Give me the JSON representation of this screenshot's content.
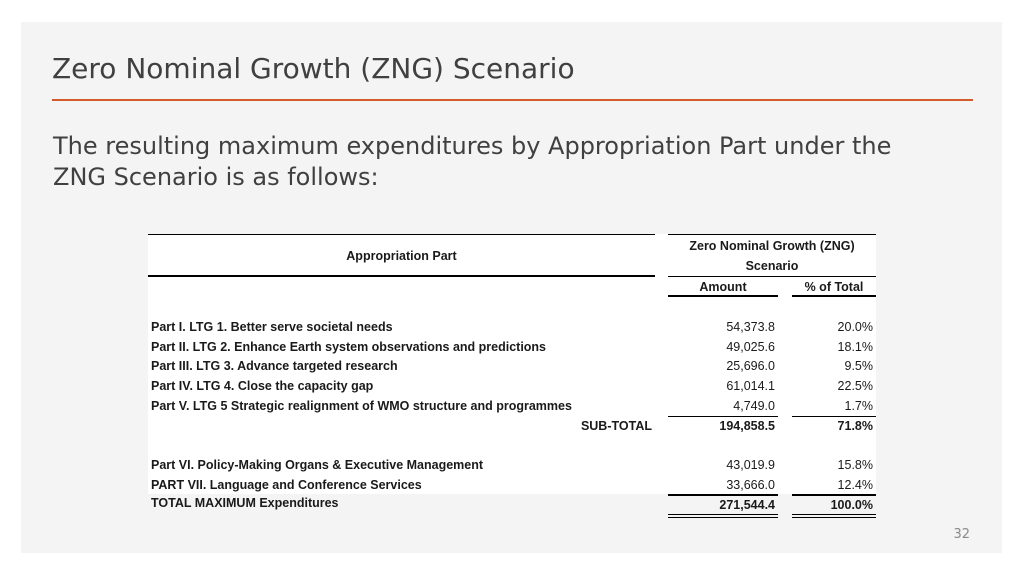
{
  "title": "Zero Nominal Growth (ZNG) Scenario",
  "subtitle": "The resulting maximum expenditures by Appropriation Part under the ZNG Scenario is as follows:",
  "page_number": "32",
  "table": {
    "header_part": "Appropriation Part",
    "header_group_line1": "Zero Nominal Growth (ZNG)",
    "header_group_line2": "Scenario",
    "header_amount": "Amount",
    "header_pct": "% of Total",
    "rows": [
      {
        "label": "Part I. LTG 1. Better serve societal needs",
        "amount": "54,373.8",
        "pct": "20.0%"
      },
      {
        "label": "Part II. LTG 2. Enhance Earth system observations and predictions",
        "amount": "49,025.6",
        "pct": "18.1%"
      },
      {
        "label": "Part III. LTG 3. Advance targeted research",
        "amount": "25,696.0",
        "pct": "9.5%"
      },
      {
        "label": "Part IV. LTG 4. Close the capacity gap",
        "amount": "61,014.1",
        "pct": "22.5%"
      },
      {
        "label": "Part V. LTG 5 Strategic realignment of WMO structure and programmes",
        "amount": "4,749.0",
        "pct": "1.7%"
      }
    ],
    "subtotal": {
      "label": "SUB-TOTAL",
      "amount": "194,858.5",
      "pct": "71.8%"
    },
    "rows2": [
      {
        "label": "Part VI. Policy-Making Organs & Executive Management",
        "amount": "43,019.9",
        "pct": "15.8%"
      },
      {
        "label": "PART VII. Language and Conference Services",
        "amount": "33,666.0",
        "pct": "12.4%"
      }
    ],
    "total": {
      "label": "TOTAL MAXIMUM Expenditures",
      "amount": "271,544.4",
      "pct": "100.0%"
    }
  }
}
